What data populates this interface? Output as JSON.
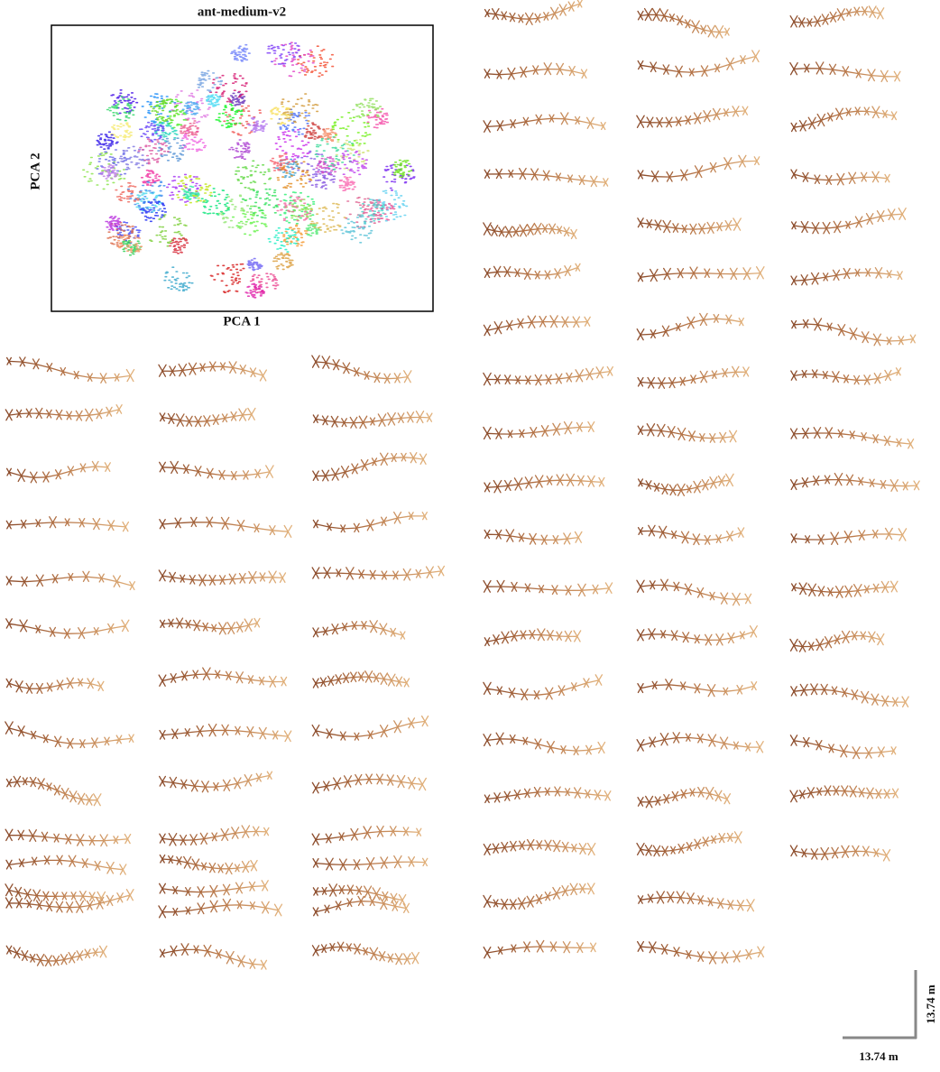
{
  "panel": {
    "title": "ant-medium-v2",
    "x_label": "PCA 1",
    "y_label": "PCA 2"
  },
  "scale_bar": {
    "vertical_label": "13.74 m",
    "horizontal_label": "13.74 m"
  }
}
